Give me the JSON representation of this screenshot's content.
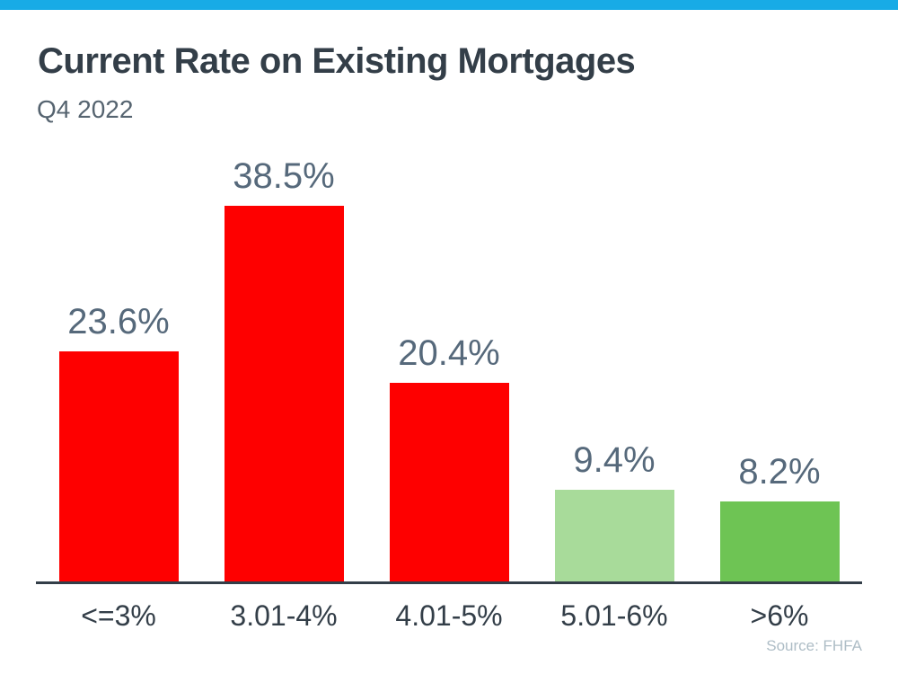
{
  "page": {
    "accent_bar_color": "#18abe6",
    "background_color": "#ffffff"
  },
  "header": {
    "title": "Current Rate on Existing Mortgages",
    "subtitle": "Q4 2022"
  },
  "chart_data": {
    "type": "bar",
    "title": "Current Rate on Existing Mortgages",
    "subtitle": "Q4 2022",
    "categories": [
      "<=3%",
      "3.01-4%",
      "4.01-5%",
      "5.01-6%",
      ">6%"
    ],
    "values": [
      23.6,
      38.5,
      20.4,
      9.4,
      8.2
    ],
    "value_labels": [
      "23.6%",
      "38.5%",
      "20.4%",
      "9.4%",
      "8.2%"
    ],
    "bar_colors": [
      "#fe0000",
      "#fe0000",
      "#fe0000",
      "#a8db9a",
      "#6ec454"
    ],
    "xlabel": "",
    "ylabel": "",
    "ylim": [
      0,
      42
    ],
    "grid": false,
    "legend": "none",
    "value_label_color": "#56697b",
    "axis_label_color": "#333e48",
    "axis_line_color": "#333e48",
    "source": "Source: FHFA"
  },
  "footer": {
    "source": "Source: FHFA"
  }
}
